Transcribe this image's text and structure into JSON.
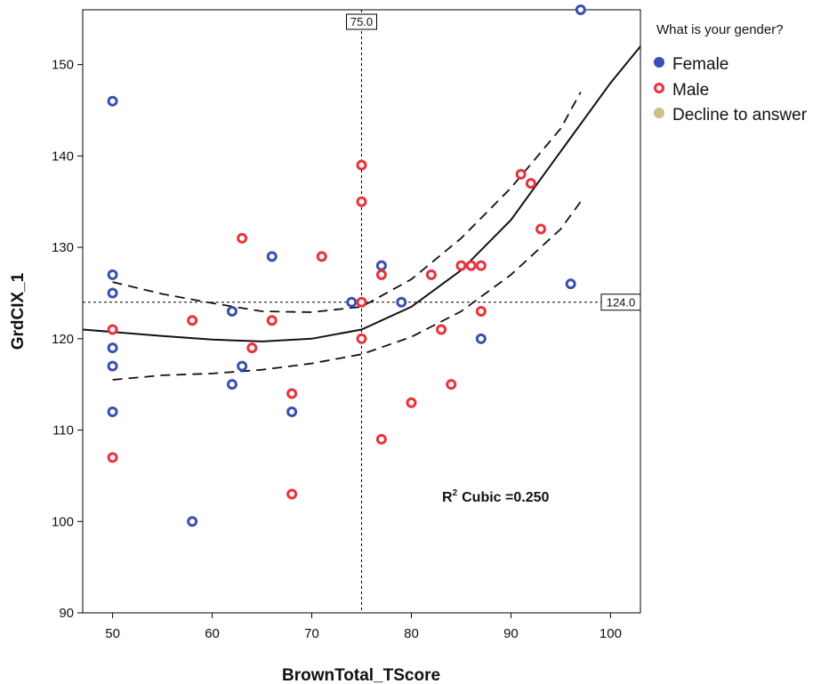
{
  "chart_data": {
    "type": "scatter",
    "xlabel": "BrownTotal_TScore",
    "ylabel": "GrdCIX_1",
    "xlim": [
      47,
      103
    ],
    "ylim": [
      90,
      156
    ],
    "x_ticks": [
      50,
      60,
      70,
      80,
      90,
      100
    ],
    "y_ticks": [
      90,
      100,
      110,
      120,
      130,
      140,
      150
    ],
    "x_tick_labels": [
      "50",
      "60",
      "70",
      "80",
      "90",
      "100"
    ],
    "y_tick_labels": [
      "90",
      "100",
      "110",
      "120",
      "130",
      "140",
      "150"
    ],
    "grid": false,
    "legend": {
      "title": "What is your gender?",
      "placement": "top-right",
      "entries": [
        {
          "label": "Female",
          "color": "#3a4fb0",
          "fill": true
        },
        {
          "label": "Male",
          "color": "#e8323c",
          "fill": false
        },
        {
          "label": "Decline to answer",
          "color": "#c9c08a",
          "fill": true
        }
      ]
    },
    "reference_lines": {
      "x": 75,
      "x_label": "75.0",
      "y": 124,
      "y_label": "124.0"
    },
    "annotation": {
      "r2_prefix": "R",
      "r2_sup": "2",
      "r2_text": "Cubic =0.250"
    },
    "fit": {
      "fit_line": [
        [
          47,
          121.0
        ],
        [
          55,
          120.3
        ],
        [
          60,
          119.9
        ],
        [
          65,
          119.7
        ],
        [
          70,
          120.0
        ],
        [
          75,
          121.0
        ],
        [
          80,
          123.5
        ],
        [
          85,
          127.5
        ],
        [
          90,
          133.0
        ],
        [
          95,
          140.5
        ],
        [
          100,
          148.0
        ],
        [
          103,
          152.0
        ]
      ],
      "upper_ci": [
        [
          50,
          126.2
        ],
        [
          55,
          124.9
        ],
        [
          60,
          123.9
        ],
        [
          65,
          123.0
        ],
        [
          70,
          122.9
        ],
        [
          75,
          123.5
        ],
        [
          80,
          126.5
        ],
        [
          85,
          131.0
        ],
        [
          90,
          136.5
        ],
        [
          95,
          143.0
        ],
        [
          97,
          147.0
        ]
      ],
      "lower_ci": [
        [
          50,
          115.5
        ],
        [
          55,
          116.0
        ],
        [
          60,
          116.2
        ],
        [
          65,
          116.6
        ],
        [
          70,
          117.3
        ],
        [
          75,
          118.3
        ],
        [
          80,
          120.2
        ],
        [
          85,
          123.0
        ],
        [
          90,
          127.0
        ],
        [
          95,
          132.0
        ],
        [
          97,
          135.0
        ]
      ]
    },
    "series": [
      {
        "name": "Female",
        "color": "#3a4fb0",
        "points": [
          [
            50,
            146
          ],
          [
            50,
            127
          ],
          [
            50,
            125
          ],
          [
            50,
            119
          ],
          [
            50,
            117
          ],
          [
            50,
            112
          ],
          [
            58,
            100
          ],
          [
            62,
            123
          ],
          [
            62,
            115
          ],
          [
            63,
            117
          ],
          [
            66,
            129
          ],
          [
            68,
            112
          ],
          [
            74,
            124
          ],
          [
            77,
            128
          ],
          [
            79,
            124
          ],
          [
            87,
            120
          ],
          [
            96,
            126
          ],
          [
            97,
            156
          ]
        ]
      },
      {
        "name": "Male",
        "color": "#e8323c",
        "points": [
          [
            50,
            121
          ],
          [
            50,
            107
          ],
          [
            58,
            122
          ],
          [
            63,
            131
          ],
          [
            64,
            119
          ],
          [
            66,
            122
          ],
          [
            68,
            114
          ],
          [
            68,
            103
          ],
          [
            71,
            129
          ],
          [
            75,
            139
          ],
          [
            75,
            135
          ],
          [
            75,
            124
          ],
          [
            75,
            120
          ],
          [
            77,
            127
          ],
          [
            77,
            109
          ],
          [
            80,
            113
          ],
          [
            82,
            127
          ],
          [
            83,
            121
          ],
          [
            84,
            115
          ],
          [
            85,
            128
          ],
          [
            86,
            128
          ],
          [
            87,
            128
          ],
          [
            87,
            123
          ],
          [
            91,
            138
          ],
          [
            92,
            137
          ],
          [
            93,
            132
          ]
        ]
      },
      {
        "name": "Decline to answer",
        "color": "#c9c08a",
        "points": []
      }
    ]
  }
}
